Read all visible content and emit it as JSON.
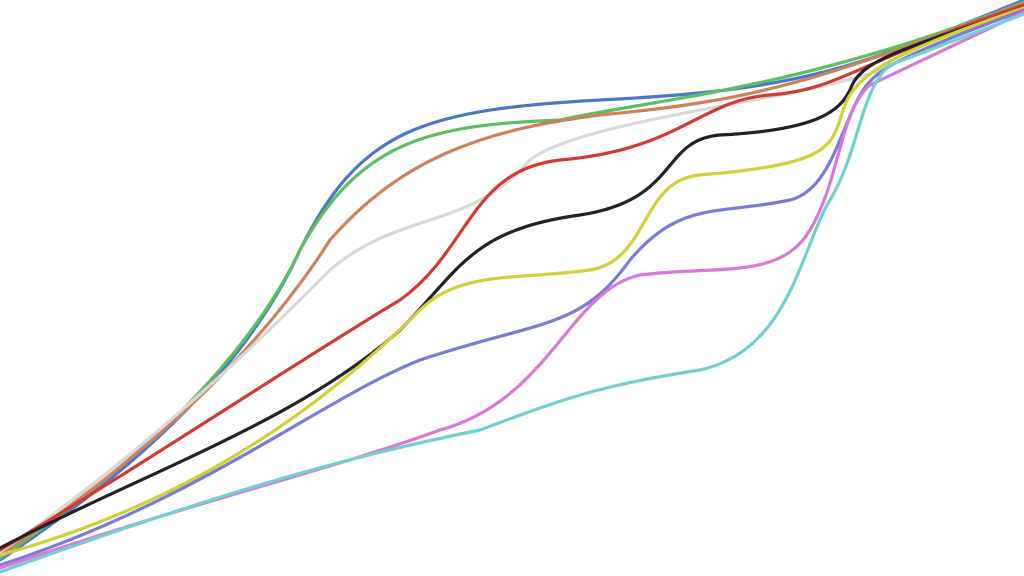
{
  "wires": [
    {
      "color": "#4a78c8"
    },
    {
      "color": "#5cc060"
    },
    {
      "color": "#d0805a"
    },
    {
      "color": "#d8d8d8"
    },
    {
      "color": "#d23a32"
    },
    {
      "color": "#222222"
    },
    {
      "color": "#d2d038"
    },
    {
      "color": "#7a7ad8"
    },
    {
      "color": "#d878d8"
    },
    {
      "color": "#70d0d0"
    }
  ]
}
